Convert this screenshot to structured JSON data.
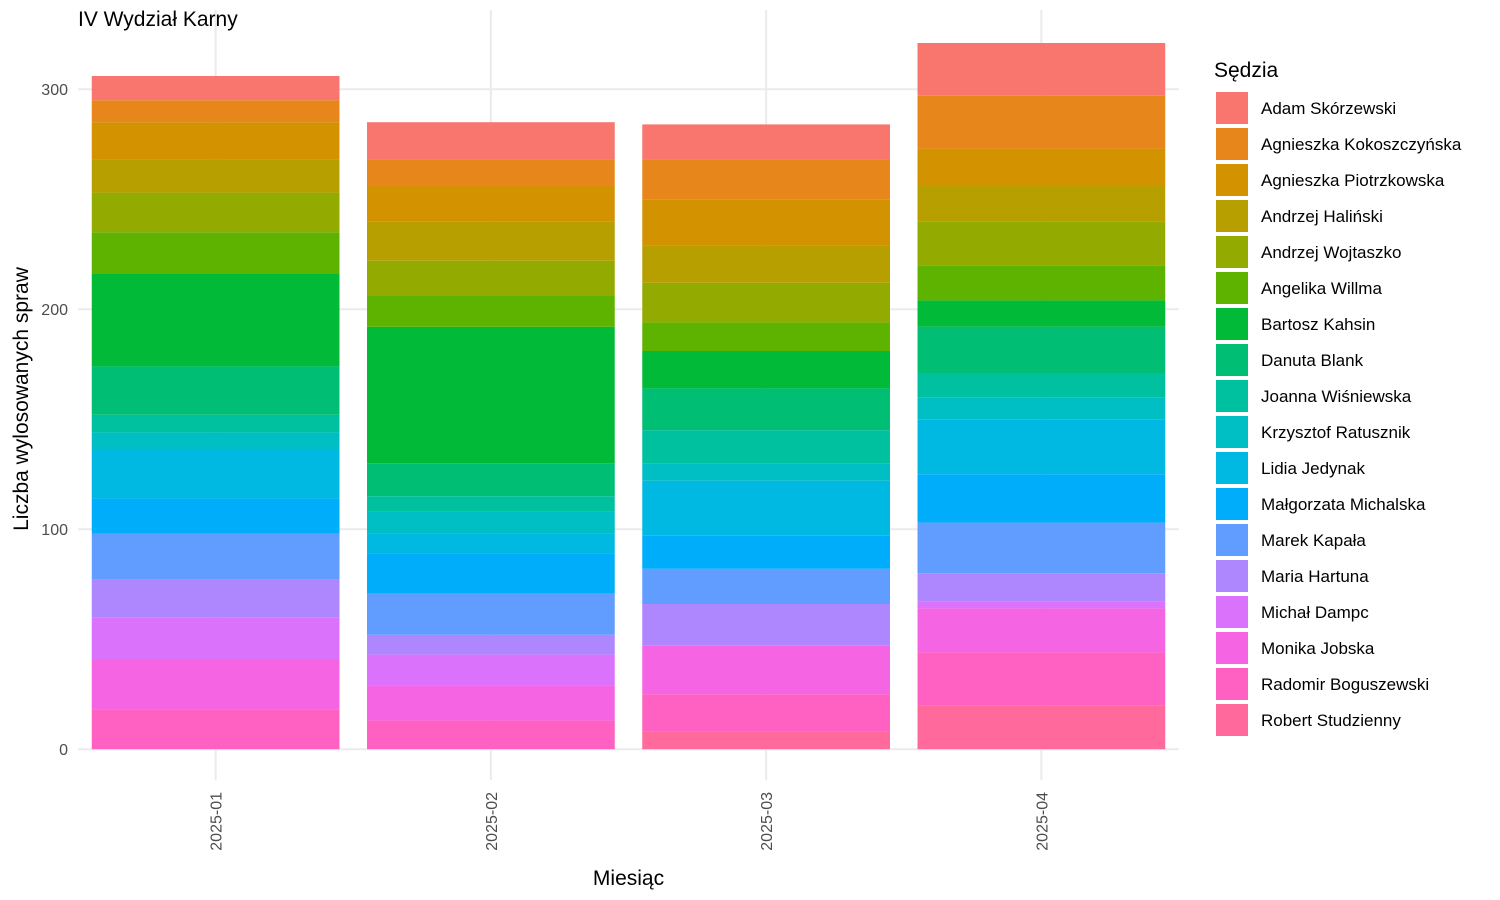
{
  "chart_data": {
    "type": "bar",
    "stacked": true,
    "title": "IV Wydział Karny",
    "xlabel": "Miesiąc",
    "ylabel": "Liczba wylosowanych spraw",
    "legend_title": "Sędzia",
    "legend_position": "right",
    "grid": true,
    "ylim": [
      -14,
      336
    ],
    "yticks": [
      0,
      100,
      200,
      300
    ],
    "categories": [
      "2025-01",
      "2025-02",
      "2025-03",
      "2025-04"
    ],
    "series": [
      {
        "name": "Adam Skórzewski",
        "color": "#F8766D",
        "values": [
          11,
          17,
          16,
          24
        ]
      },
      {
        "name": "Agnieszka Kokoszczyńska",
        "color": "#E7861B",
        "values": [
          10,
          12,
          18,
          24
        ]
      },
      {
        "name": "Agnieszka Piotrzkowska",
        "color": "#D39200",
        "values": [
          17,
          16,
          21,
          17
        ]
      },
      {
        "name": "Andrzej Haliński",
        "color": "#B79F00",
        "values": [
          15,
          18,
          17,
          16
        ]
      },
      {
        "name": "Andrzej Wojtaszko",
        "color": "#93AA00",
        "values": [
          18,
          16,
          18,
          20
        ]
      },
      {
        "name": "Angelika Willma",
        "color": "#5EB300",
        "values": [
          19,
          14,
          13,
          16
        ]
      },
      {
        "name": "Bartosz Kahsin",
        "color": "#00BA38",
        "values": [
          42,
          62,
          17,
          12
        ]
      },
      {
        "name": "Danuta Blank",
        "color": "#00BF74",
        "values": [
          22,
          15,
          19,
          21
        ]
      },
      {
        "name": "Joanna Wiśniewska",
        "color": "#00C19F",
        "values": [
          8,
          7,
          15,
          11
        ]
      },
      {
        "name": "Krzysztof Ratusznik",
        "color": "#00BFC4",
        "values": [
          8,
          10,
          8,
          10
        ]
      },
      {
        "name": "Lidia Jedynak",
        "color": "#00B9E3",
        "values": [
          22,
          9,
          25,
          25
        ]
      },
      {
        "name": "Małgorzata Michalska",
        "color": "#00ADFA",
        "values": [
          16,
          18,
          15,
          22
        ]
      },
      {
        "name": "Marek Kapała",
        "color": "#619CFF",
        "values": [
          21,
          19,
          16,
          23
        ]
      },
      {
        "name": "Maria Hartuna",
        "color": "#AE87FF",
        "values": [
          17,
          9,
          19,
          13
        ]
      },
      {
        "name": "Michał Dampc",
        "color": "#DB72FB",
        "values": [
          19,
          14,
          0,
          3
        ]
      },
      {
        "name": "Monika Jobska",
        "color": "#F564E3",
        "values": [
          23,
          16,
          22,
          20
        ]
      },
      {
        "name": "Radomir Boguszewski",
        "color": "#FF61C3",
        "values": [
          18,
          13,
          17,
          24
        ]
      },
      {
        "name": "Robert Studzienny",
        "color": "#FF699C",
        "values": [
          0,
          0,
          8,
          20
        ]
      }
    ]
  }
}
